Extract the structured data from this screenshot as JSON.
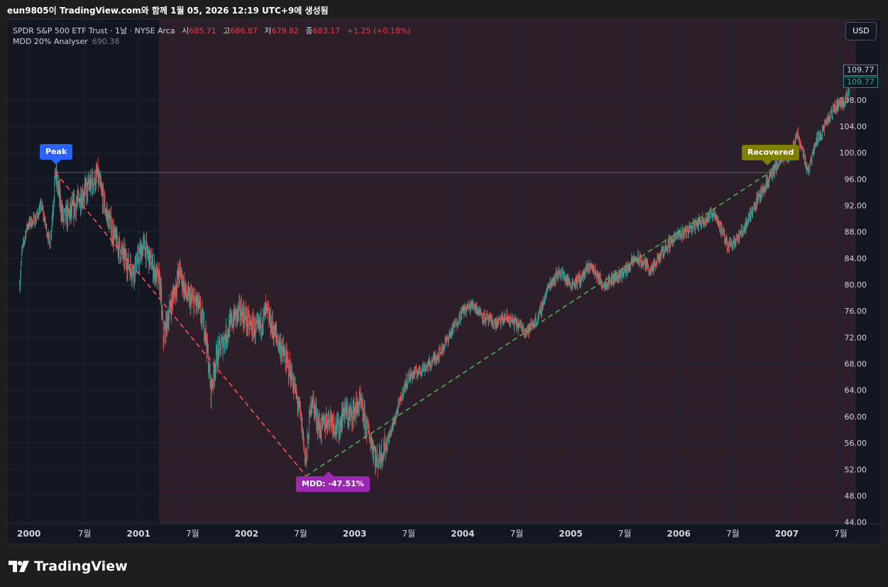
{
  "header": {
    "text": "eun9805이 TradingView.com와 함께 1월 05, 2026 12:19 UTC+9에 생성됨"
  },
  "legend": {
    "title": "SPDR S&P 500 ETF Trust · 1날 · NYSE Arca",
    "open_key": "시",
    "open_val": "685.71",
    "high_key": "고",
    "high_val": "686.87",
    "low_key": "저",
    "low_val": "679.82",
    "close_key": "종",
    "close_val": "683.17",
    "change": "+1.25 (+0.18%)",
    "indicator": "MDD 20% Analyser",
    "indicator_val": "690.38"
  },
  "currency_button": "USD",
  "price_tags": {
    "prev": "109.77",
    "last": "109.77"
  },
  "markers": {
    "peak": "Peak",
    "mdd": "MDD: -47.51%",
    "recovered": "Recovered"
  },
  "logo": {
    "text": "TradingView"
  },
  "colors": {
    "background": "#131722",
    "up": "#26a69a",
    "down": "#ef5350",
    "drawdown_shade": "#2d1f2a",
    "peak_line": "#ff5252",
    "recovery_line": "#4caf50",
    "peak_label": "#2962ff",
    "mdd_label": "#9c27b0",
    "recovered_label": "#808000"
  },
  "chart_data": {
    "type": "candlestick",
    "symbol": "SPDR S&P 500 ETF Trust",
    "interval": "1날",
    "exchange": "NYSE Arca",
    "ylim": [
      42,
      112
    ],
    "y_ticks": [
      "44.00",
      "48.00",
      "52.00",
      "56.00",
      "60.00",
      "64.00",
      "68.00",
      "72.00",
      "76.00",
      "80.00",
      "84.00",
      "88.00",
      "92.00",
      "96.00",
      "100.00",
      "104.00",
      "108.00"
    ],
    "x_ticks": [
      {
        "t": 1999.985,
        "label": "2000"
      },
      {
        "t": 2000.5,
        "label": "7월"
      },
      {
        "t": 2001.0,
        "label": "2001"
      },
      {
        "t": 2001.5,
        "label": "7월"
      },
      {
        "t": 2002.0,
        "label": "2002"
      },
      {
        "t": 2002.5,
        "label": "7월"
      },
      {
        "t": 2003.0,
        "label": "2003"
      },
      {
        "t": 2003.5,
        "label": "7월"
      },
      {
        "t": 2004.0,
        "label": "2004"
      },
      {
        "t": 2004.5,
        "label": "7월"
      },
      {
        "t": 2005.0,
        "label": "2005"
      },
      {
        "t": 2005.5,
        "label": "7월"
      },
      {
        "t": 2006.0,
        "label": "2006"
      },
      {
        "t": 2006.5,
        "label": "7월"
      },
      {
        "t": 2007.0,
        "label": "2007"
      },
      {
        "t": 2007.5,
        "label": "7월"
      }
    ],
    "price_path": [
      [
        1999.9,
        80
      ],
      [
        1999.92,
        85
      ],
      [
        1999.97,
        89
      ],
      [
        2000.05,
        90
      ],
      [
        2000.1,
        92
      ],
      [
        2000.18,
        86
      ],
      [
        2000.23,
        97
      ],
      [
        2000.3,
        90
      ],
      [
        2000.38,
        91
      ],
      [
        2000.45,
        93
      ],
      [
        2000.55,
        95
      ],
      [
        2000.62,
        96.5
      ],
      [
        2000.7,
        91
      ],
      [
        2000.78,
        87
      ],
      [
        2000.87,
        84
      ],
      [
        2000.95,
        82
      ],
      [
        2001.05,
        86
      ],
      [
        2001.1,
        84
      ],
      [
        2001.2,
        80
      ],
      [
        2001.23,
        72
      ],
      [
        2001.3,
        77
      ],
      [
        2001.38,
        82
      ],
      [
        2001.45,
        78
      ],
      [
        2001.55,
        77
      ],
      [
        2001.62,
        73
      ],
      [
        2001.67,
        64
      ],
      [
        2001.72,
        69
      ],
      [
        2001.8,
        72
      ],
      [
        2001.88,
        75
      ],
      [
        2001.95,
        76
      ],
      [
        2002.02,
        74
      ],
      [
        2002.1,
        73
      ],
      [
        2002.18,
        76
      ],
      [
        2002.25,
        73
      ],
      [
        2002.33,
        70
      ],
      [
        2002.42,
        66
      ],
      [
        2002.5,
        60
      ],
      [
        2002.55,
        53
      ],
      [
        2002.6,
        63
      ],
      [
        2002.68,
        58
      ],
      [
        2002.77,
        60
      ],
      [
        2002.85,
        58
      ],
      [
        2002.9,
        61
      ],
      [
        2002.95,
        60
      ],
      [
        2003.05,
        62
      ],
      [
        2003.1,
        59
      ],
      [
        2003.18,
        55
      ],
      [
        2003.2,
        53
      ],
      [
        2003.3,
        56
      ],
      [
        2003.38,
        60
      ],
      [
        2003.45,
        64
      ],
      [
        2003.5,
        66
      ],
      [
        2003.6,
        67
      ],
      [
        2003.7,
        68
      ],
      [
        2003.8,
        70
      ],
      [
        2003.9,
        73
      ],
      [
        2004.0,
        76
      ],
      [
        2004.1,
        77
      ],
      [
        2004.2,
        75
      ],
      [
        2004.3,
        74
      ],
      [
        2004.4,
        75
      ],
      [
        2004.5,
        74
      ],
      [
        2004.6,
        73
      ],
      [
        2004.7,
        75
      ],
      [
        2004.8,
        80
      ],
      [
        2004.9,
        82
      ],
      [
        2005.0,
        80
      ],
      [
        2005.1,
        81
      ],
      [
        2005.18,
        83
      ],
      [
        2005.3,
        80
      ],
      [
        2005.4,
        81
      ],
      [
        2005.5,
        82
      ],
      [
        2005.6,
        84
      ],
      [
        2005.7,
        83
      ],
      [
        2005.75,
        82
      ],
      [
        2005.85,
        85
      ],
      [
        2005.95,
        87
      ],
      [
        2006.05,
        88
      ],
      [
        2006.15,
        89
      ],
      [
        2006.25,
        90
      ],
      [
        2006.33,
        91
      ],
      [
        2006.4,
        88
      ],
      [
        2006.45,
        86
      ],
      [
        2006.55,
        87
      ],
      [
        2006.62,
        89
      ],
      [
        2006.7,
        92
      ],
      [
        2006.8,
        95
      ],
      [
        2006.87,
        97
      ],
      [
        2006.95,
        99
      ],
      [
        2007.05,
        100
      ],
      [
        2007.1,
        103
      ],
      [
        2007.2,
        97
      ],
      [
        2007.25,
        101
      ],
      [
        2007.35,
        104
      ],
      [
        2007.45,
        107
      ],
      [
        2007.55,
        108
      ],
      [
        2007.58,
        109.8
      ]
    ],
    "drawdown_period": {
      "start": 2001.19,
      "end": 2007.64
    },
    "peak": {
      "t": 2000.23,
      "price": 97
    },
    "trough": {
      "t": 2002.55,
      "price": 51
    },
    "recovered": {
      "t": 2006.84,
      "price": 97
    },
    "max_drawdown_pct": -47.51,
    "last_price": 109.77
  }
}
